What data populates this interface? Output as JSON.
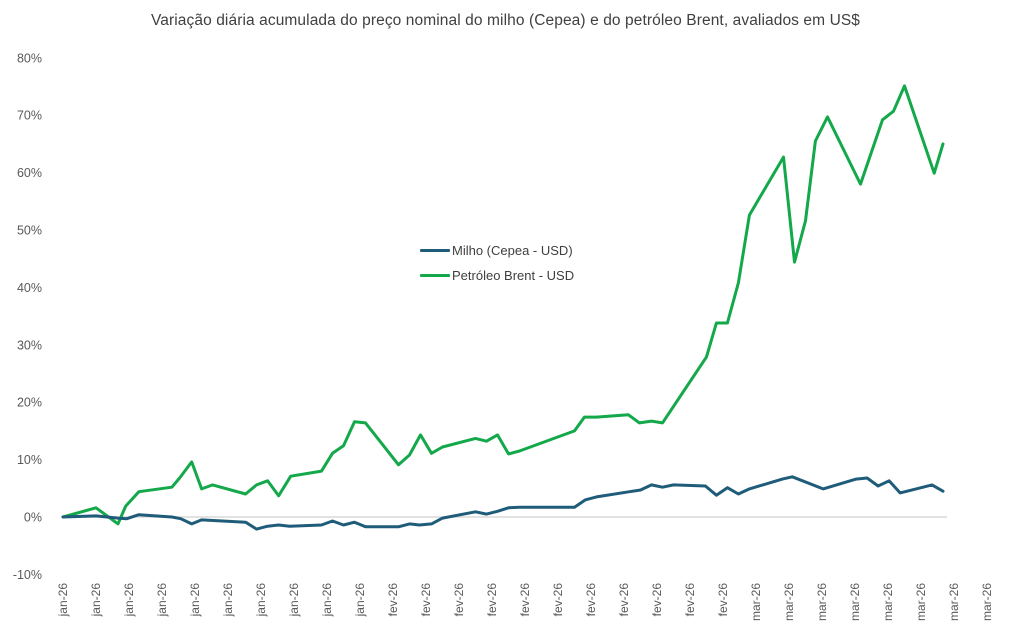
{
  "chart_data": {
    "type": "line",
    "title": "Variação diária acumulada do preço nominal do milho (Cepea) e do petróleo Brent, avaliados em US$",
    "xlabel": "",
    "ylabel": "",
    "ylim": [
      -0.1,
      0.8
    ],
    "yticks": [
      -0.1,
      0.0,
      0.1,
      0.2,
      0.3,
      0.4,
      0.5,
      0.6,
      0.7,
      0.8
    ],
    "ytick_labels": [
      "-10%",
      "0%",
      "10%",
      "20%",
      "30%",
      "40%",
      "50%",
      "60%",
      "70%",
      "80%"
    ],
    "x_tick_labels": [
      "jan-26",
      "jan-26",
      "jan-26",
      "jan-26",
      "jan-26",
      "jan-26",
      "jan-26",
      "jan-26",
      "jan-26",
      "jan-26",
      "fev-26",
      "fev-26",
      "fev-26",
      "fev-26",
      "fev-26",
      "fev-26",
      "fev-26",
      "fev-26",
      "fev-26",
      "fev-26",
      "fev-26",
      "mar-26",
      "mar-26",
      "mar-26",
      "mar-26",
      "mar-26",
      "mar-26",
      "mar-26",
      "mar-26"
    ],
    "x_range_steps": 80,
    "x_tick_step": 3,
    "grid": false,
    "zero_line": true,
    "legend_position": "inside-center",
    "series": [
      {
        "name": "Milho (Cepea - USD)",
        "color": "#1f5c7a",
        "points": [
          [
            0,
            0.0
          ],
          [
            3,
            0.002
          ],
          [
            5,
            -0.002
          ],
          [
            5.8,
            -0.003
          ],
          [
            6.9,
            0.004
          ],
          [
            9.9,
            0.0
          ],
          [
            10.7,
            -0.003
          ],
          [
            11.7,
            -0.012
          ],
          [
            12.6,
            -0.005
          ],
          [
            16.6,
            -0.009
          ],
          [
            17.6,
            -0.021
          ],
          [
            18.6,
            -0.016
          ],
          [
            19.6,
            -0.014
          ],
          [
            20.6,
            -0.016
          ],
          [
            23.5,
            -0.014
          ],
          [
            24.5,
            -0.007
          ],
          [
            25.5,
            -0.014
          ],
          [
            26.5,
            -0.009
          ],
          [
            27.5,
            -0.017
          ],
          [
            30.5,
            -0.017
          ],
          [
            31.5,
            -0.012
          ],
          [
            32.4,
            -0.014
          ],
          [
            33.5,
            -0.012
          ],
          [
            34.5,
            -0.002
          ],
          [
            37.5,
            0.009
          ],
          [
            38.5,
            0.005
          ],
          [
            39.5,
            0.01
          ],
          [
            40.5,
            0.016
          ],
          [
            41.5,
            0.017
          ],
          [
            46.5,
            0.017
          ],
          [
            47.5,
            0.03
          ],
          [
            48.5,
            0.035
          ],
          [
            51.5,
            0.044
          ],
          [
            52.5,
            0.047
          ],
          [
            53.5,
            0.056
          ],
          [
            54.5,
            0.052
          ],
          [
            55.5,
            0.056
          ],
          [
            58.4,
            0.054
          ],
          [
            59.4,
            0.038
          ],
          [
            60.4,
            0.051
          ],
          [
            61.4,
            0.04
          ],
          [
            62.4,
            0.049
          ],
          [
            65.4,
            0.066
          ],
          [
            66.3,
            0.07
          ],
          [
            69.1,
            0.049
          ],
          [
            72.1,
            0.066
          ],
          [
            73.1,
            0.068
          ],
          [
            74.1,
            0.054
          ],
          [
            75.1,
            0.063
          ],
          [
            76.1,
            0.042
          ],
          [
            79,
            0.056
          ],
          [
            80,
            0.045
          ]
        ]
      },
      {
        "name": "Petróleo Brent - USD",
        "color": "#13a84a",
        "points": [
          [
            0,
            0.0
          ],
          [
            3,
            0.016
          ],
          [
            5,
            -0.012
          ],
          [
            5.7,
            0.019
          ],
          [
            6.9,
            0.044
          ],
          [
            9.9,
            0.052
          ],
          [
            10.6,
            0.068
          ],
          [
            11.7,
            0.096
          ],
          [
            12.6,
            0.049
          ],
          [
            13.6,
            0.056
          ],
          [
            16.6,
            0.04
          ],
          [
            17.6,
            0.056
          ],
          [
            18.6,
            0.063
          ],
          [
            19.6,
            0.037
          ],
          [
            20.7,
            0.071
          ],
          [
            23.5,
            0.08
          ],
          [
            24.5,
            0.111
          ],
          [
            25.5,
            0.124
          ],
          [
            26.5,
            0.166
          ],
          [
            27.5,
            0.164
          ],
          [
            30.5,
            0.091
          ],
          [
            31.5,
            0.108
          ],
          [
            32.5,
            0.143
          ],
          [
            33.5,
            0.111
          ],
          [
            34.5,
            0.122
          ],
          [
            37.5,
            0.137
          ],
          [
            38.5,
            0.132
          ],
          [
            39.5,
            0.143
          ],
          [
            40.5,
            0.11
          ],
          [
            41.5,
            0.115
          ],
          [
            46.5,
            0.15
          ],
          [
            47.4,
            0.174
          ],
          [
            48.5,
            0.174
          ],
          [
            51.4,
            0.178
          ],
          [
            52.4,
            0.164
          ],
          [
            53.5,
            0.167
          ],
          [
            54.5,
            0.164
          ],
          [
            58.5,
            0.279
          ],
          [
            59.4,
            0.338
          ],
          [
            60.4,
            0.338
          ],
          [
            61.4,
            0.408
          ],
          [
            62.4,
            0.526
          ],
          [
            65.5,
            0.627
          ],
          [
            66.5,
            0.444
          ],
          [
            67.5,
            0.516
          ],
          [
            68.4,
            0.655
          ],
          [
            69.5,
            0.697
          ],
          [
            72.5,
            0.58
          ],
          [
            74.5,
            0.692
          ],
          [
            75.5,
            0.707
          ],
          [
            76.5,
            0.751
          ],
          [
            79.2,
            0.599
          ],
          [
            80,
            0.65
          ]
        ]
      }
    ]
  },
  "legend": {
    "items": [
      {
        "label": "Milho (Cepea - USD)",
        "color": "#1f5c7a"
      },
      {
        "label": "Petróleo Brent - USD",
        "color": "#13a84a"
      }
    ]
  },
  "colors": {
    "zero_line": "#d9d9d9",
    "axis_text": "#595959",
    "title_text": "#404040"
  }
}
